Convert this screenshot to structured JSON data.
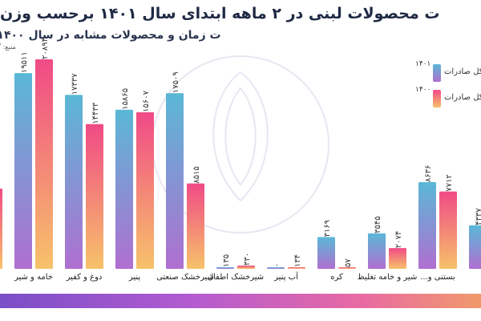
{
  "title": "ت محصولات لبنی در ۲ ماهه ابتدای سال ۱۴۰۱ برحسب وزن",
  "subtitle": "ت زمان و محصولات مشابه در سال ۱۴۰۰)",
  "source": "منبع: گ",
  "colors": {
    "series_1401_top": "#5ab8d6",
    "series_1401_bottom": "#b06fd0",
    "series_1400_top": "#f04a86",
    "series_1400_bottom": "#f7c26a",
    "band": "#b35bd0"
  },
  "legend": [
    {
      "year": "۱۴۰۱",
      "label": "کل صادرات"
    },
    {
      "year": "۱۴۰۰",
      "label": "کل صادرات"
    }
  ],
  "chart_data": {
    "type": "bar",
    "categories": [
      "",
      "خامه و شیر",
      "دوغ و کفیر",
      "پنیر",
      "شیرخشک صنعتی",
      "شیرخشک اطفال",
      "آب پنیر",
      "کره",
      "شیر و خامه تغلیظ",
      "بستنی و...",
      ""
    ],
    "series": [
      {
        "name": "۱۴۰۱",
        "values": [
          null,
          19511,
          17337,
          15865,
          17509,
          135,
          0,
          3169,
          3545,
          8636,
          4337
        ],
        "labels": [
          "",
          "۱۹۵۱۱",
          "۱۷۳۳۷",
          "۱۵۸۶۵",
          "۱۷۵۰۹",
          "۱۳۵",
          "۰",
          "۳۱۶۹",
          "۳۵۴۵",
          "۸۶۳۶",
          "۴۳۳۷"
        ]
      },
      {
        "name": "۱۴۰۰",
        "values": [
          8000,
          20894,
          14433,
          15607,
          8515,
          330,
          134,
          57,
          2074,
          7712,
          null
        ],
        "labels": [
          "",
          "۲۰۸۹۴",
          "۱۴۴۳۳",
          "۱۵۶۰۷",
          "۸۵۱۵",
          "۳۳۰",
          "۱۳۴",
          "۵۷",
          "۲۰۷۴",
          "۷۷۱۲",
          ""
        ]
      }
    ],
    "ylim": [
      0,
      22000
    ],
    "grid": false,
    "legend_position": "top-right"
  }
}
